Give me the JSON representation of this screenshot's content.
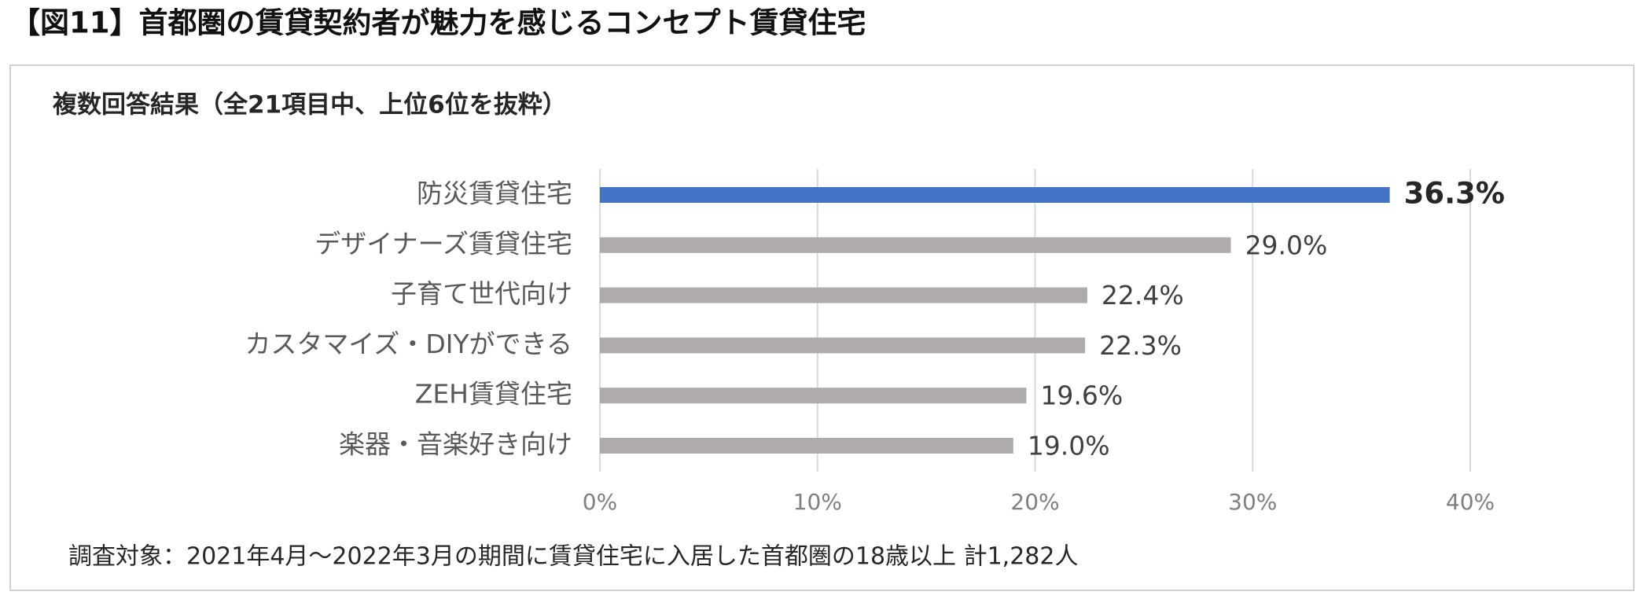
{
  "chart_data": {
    "type": "hbar",
    "title": "【図11】首都圏の賃貸契約者が魅力を感じるコンセプト賃貸住宅",
    "subtitle": "複数回答結果（全21項目中、上位6位を抜粋）",
    "note": "調査対象：2021年4月～2022年3月の期間に賃貸住宅に入居した首都圏の18歳以上 計1,282人",
    "categories": [
      "防災賃貸住宅",
      "デザイナーズ賃貸住宅",
      "子育て世代向け",
      "カスタマイズ・DIYができる",
      "ZEH賃貸住宅",
      "楽器・音楽好き向け"
    ],
    "values": [
      36.3,
      29.0,
      22.4,
      22.3,
      19.6,
      19.0
    ],
    "value_labels": [
      "36.3%",
      "29.0%",
      "22.4%",
      "22.3%",
      "19.6%",
      "19.0%"
    ],
    "colors": [
      "#4472c4",
      "#afabab",
      "#afabab",
      "#afabab",
      "#afabab",
      "#afabab"
    ],
    "highlight_color": "#4472c4",
    "xlim": [
      0,
      40
    ],
    "xticks": [
      {
        "value": 0,
        "label": "0%"
      },
      {
        "value": 10,
        "label": "10%"
      },
      {
        "value": 20,
        "label": "20%"
      },
      {
        "value": 30,
        "label": "30%"
      },
      {
        "value": 40,
        "label": "40%"
      }
    ],
    "grid": true
  }
}
